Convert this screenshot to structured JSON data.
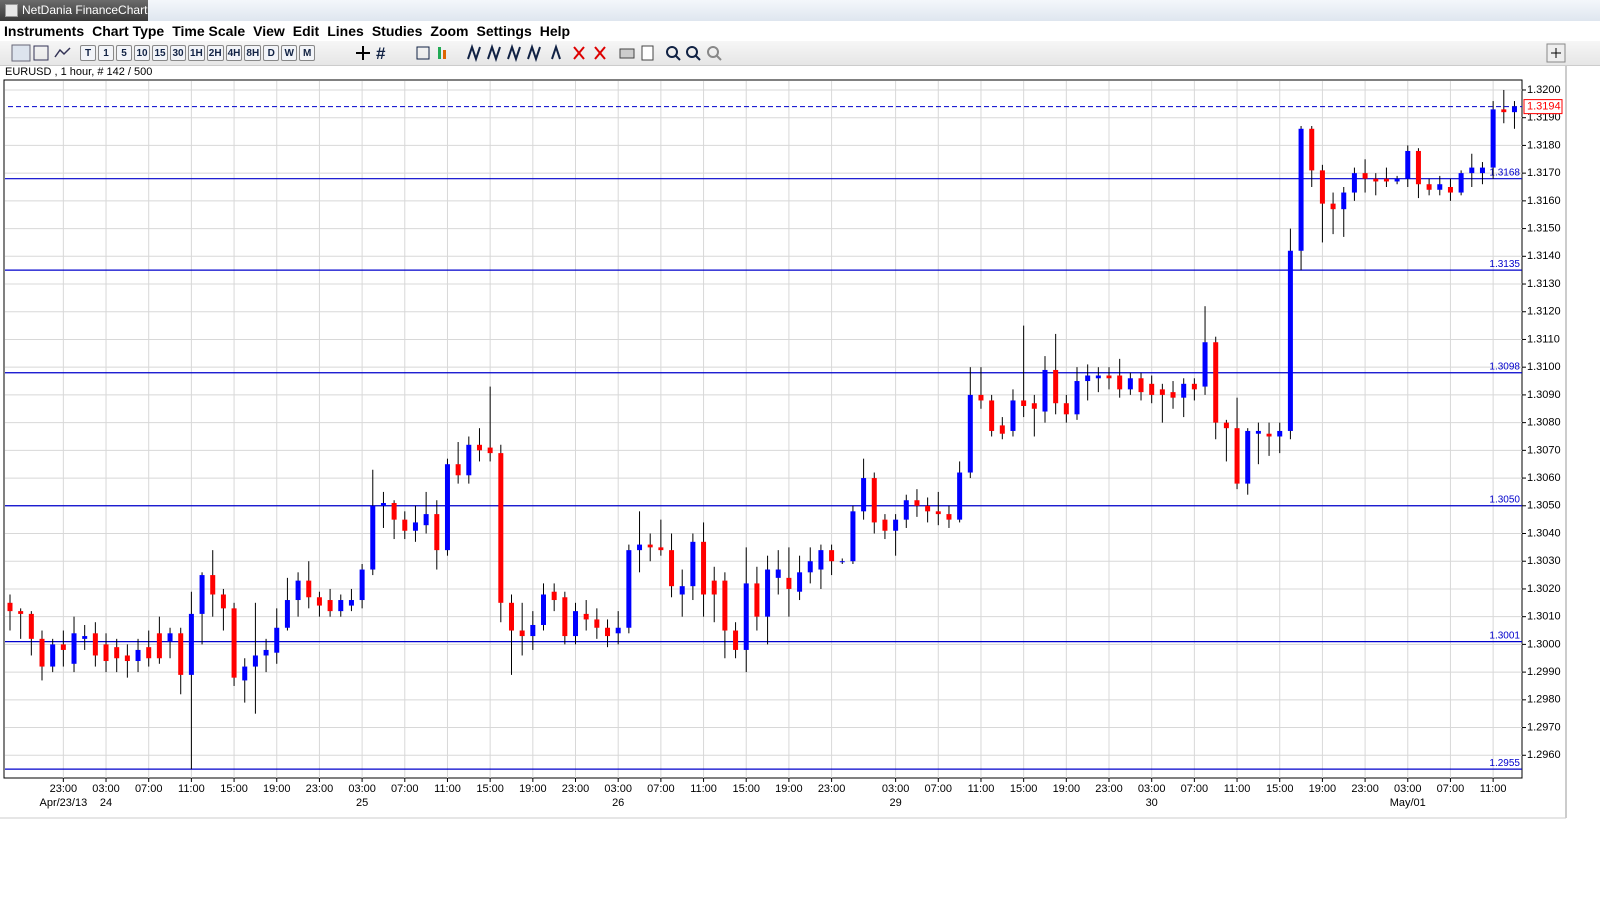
{
  "window": {
    "title": "NetDania FinanceChart",
    "menu": [
      "Instruments",
      "Chart Type",
      "Time Scale",
      "View",
      "Edit",
      "Lines",
      "Studies",
      "Zoom",
      "Settings",
      "Help"
    ],
    "toolbar": [
      "T",
      "1",
      "5",
      "10",
      "15",
      "30",
      "1H",
      "2H",
      "4H",
      "8H",
      "D",
      "W",
      "M"
    ],
    "info": "EURUSD , 1 hour, # 142 / 500"
  },
  "chart_data": {
    "type": "candlestick",
    "up_color": "#0000ff",
    "down_color": "#ff0000",
    "grid": true,
    "level_color": "#0000cc",
    "categories": [
      null,
      null,
      null,
      null,
      null,
      "23:00",
      null,
      null,
      null,
      "03:00",
      null,
      null,
      null,
      "07:00",
      null,
      null,
      null,
      "11:00",
      null,
      null,
      null,
      "15:00",
      null,
      null,
      null,
      "19:00",
      null,
      null,
      null,
      "23:00",
      null,
      null,
      null,
      "03:00",
      null,
      null,
      null,
      "07:00",
      null,
      null,
      null,
      "11:00",
      null,
      null,
      null,
      "15:00",
      null,
      null,
      null,
      "19:00",
      null,
      null,
      null,
      "23:00",
      null,
      null,
      null,
      "03:00",
      null,
      null,
      null,
      "07:00",
      null,
      null,
      null,
      "11:00",
      null,
      null,
      null,
      "15:00",
      null,
      null,
      null,
      "19:00",
      null,
      null,
      null,
      "23:00",
      null,
      null,
      null,
      null,
      null,
      "03:00",
      null,
      null,
      null,
      "07:00",
      null,
      null,
      null,
      "11:00",
      null,
      null,
      null,
      "15:00",
      null,
      null,
      null,
      "19:00",
      null,
      null,
      null,
      "23:00",
      null,
      null,
      null,
      "03:00",
      null,
      null,
      null,
      "07:00",
      null,
      null,
      null,
      "11:00",
      null,
      null,
      null,
      "15:00",
      null,
      null,
      null,
      "19:00",
      null,
      null,
      null,
      "23:00",
      null,
      null,
      null,
      "03:00",
      null,
      null,
      null,
      "07:00",
      null,
      null,
      null,
      "11:00",
      null,
      null
    ],
    "dates": [
      null,
      null,
      null,
      null,
      null,
      "Apr/23/13",
      null,
      null,
      null,
      "24",
      null,
      null,
      null,
      null,
      null,
      null,
      null,
      null,
      null,
      null,
      null,
      null,
      null,
      null,
      null,
      null,
      null,
      null,
      null,
      null,
      null,
      null,
      null,
      "25",
      null,
      null,
      null,
      null,
      null,
      null,
      null,
      null,
      null,
      null,
      null,
      null,
      null,
      null,
      null,
      null,
      null,
      null,
      null,
      null,
      null,
      null,
      null,
      "26",
      null,
      null,
      null,
      null,
      null,
      null,
      null,
      null,
      null,
      null,
      null,
      null,
      null,
      null,
      null,
      null,
      null,
      null,
      null,
      null,
      null,
      null,
      null,
      null,
      null,
      "29",
      null,
      null,
      null,
      null,
      null,
      null,
      null,
      null,
      null,
      null,
      null,
      null,
      null,
      null,
      null,
      null,
      null,
      null,
      null,
      null,
      null,
      null,
      null,
      "30",
      null,
      null,
      null,
      null,
      null,
      null,
      null,
      null,
      null,
      null,
      null,
      null,
      null,
      null,
      null,
      null,
      null,
      null,
      null,
      null,
      null,
      null,
      null,
      "May/01",
      null,
      null,
      null,
      null,
      null,
      null,
      null,
      null,
      null,
      null
    ],
    "open": [
      1.3015,
      1.3012,
      1.3011,
      1.3002,
      1.2992,
      1.3,
      1.2993,
      1.3002,
      1.3004,
      1.3,
      1.2999,
      1.2996,
      1.2994,
      1.2999,
      1.3004,
      1.3001,
      1.3004,
      1.2989,
      1.3011,
      1.3025,
      1.3018,
      1.3013,
      1.2987,
      1.2992,
      1.2996,
      1.2997,
      1.3006,
      1.3016,
      1.3023,
      1.3017,
      1.3016,
      1.3012,
      1.3014,
      1.3016,
      1.3027,
      1.305,
      1.3051,
      1.3045,
      1.3041,
      1.3043,
      1.3047,
      1.3034,
      1.3065,
      1.3061,
      1.3072,
      1.3071,
      1.3069,
      1.3015,
      1.3005,
      1.3003,
      1.3007,
      1.3019,
      1.3017,
      1.3003,
      1.3011,
      1.3009,
      1.3006,
      1.3004,
      1.3006,
      1.3034,
      1.3036,
      1.3035,
      1.3034,
      1.3018,
      1.3021,
      1.3037,
      1.3023,
      1.3023,
      1.3005,
      1.2998,
      1.3022,
      1.301,
      1.3024,
      1.3024,
      1.3019,
      1.3026,
      1.3027,
      1.3034,
      1.303,
      1.303,
      1.3048,
      1.306,
      1.3045,
      1.3041,
      1.3045,
      1.3052,
      1.305,
      1.3048,
      1.3047,
      1.3045,
      1.3062,
      1.309,
      1.3088,
      1.3079,
      1.3077,
      1.3088,
      1.3087,
      1.3084,
      1.3099,
      1.3087,
      1.3083,
      1.3095,
      1.3096,
      1.3097,
      1.3097,
      1.3092,
      1.3096,
      1.3094,
      1.3092,
      1.3091,
      1.3089,
      1.3094,
      1.3093,
      1.3109,
      1.308,
      1.3078,
      1.3058,
      1.3076,
      1.3076,
      1.3075,
      1.3077,
      1.3142,
      1.3186,
      1.3171,
      1.3159,
      1.3157,
      1.3163,
      1.317,
      1.3168,
      1.3168,
      1.3167,
      1.3168,
      1.3178,
      1.3166,
      1.3164,
      1.3165,
      1.3163,
      1.317,
      1.317,
      1.3172,
      1.3193,
      1.3192
    ],
    "high": [
      1.3018,
      1.3013,
      1.3012,
      1.3005,
      1.3002,
      1.3005,
      1.301,
      1.3007,
      1.3008,
      1.3004,
      1.3002,
      1.3,
      1.3002,
      1.3005,
      1.301,
      1.3006,
      1.3006,
      1.3019,
      1.3026,
      1.3034,
      1.302,
      1.3015,
      1.2995,
      1.3015,
      1.3002,
      1.3013,
      1.3024,
      1.3026,
      1.303,
      1.3019,
      1.302,
      1.3018,
      1.302,
      1.3029,
      1.3063,
      1.3055,
      1.3052,
      1.3048,
      1.305,
      1.3055,
      1.3052,
      1.3067,
      1.3073,
      1.3075,
      1.3078,
      1.3093,
      1.3072,
      1.3018,
      1.3015,
      1.3012,
      1.3022,
      1.3022,
      1.3019,
      1.3015,
      1.3016,
      1.3013,
      1.3009,
      1.3012,
      1.3036,
      1.3048,
      1.304,
      1.3045,
      1.304,
      1.3027,
      1.304,
      1.3044,
      1.3028,
      1.3026,
      1.3008,
      1.3035,
      1.3028,
      1.3032,
      1.3034,
      1.3035,
      1.3032,
      1.3035,
      1.3036,
      1.3036,
      1.3031,
      1.305,
      1.3067,
      1.3062,
      1.3047,
      1.3047,
      1.3054,
      1.3056,
      1.3053,
      1.3055,
      1.305,
      1.3066,
      1.31,
      1.31,
      1.309,
      1.3082,
      1.3092,
      1.3115,
      1.309,
      1.3104,
      1.3112,
      1.309,
      1.31,
      1.3101,
      1.31,
      1.31,
      1.3103,
      1.3098,
      1.3098,
      1.3097,
      1.3094,
      1.3095,
      1.3096,
      1.3096,
      1.3122,
      1.3111,
      1.3081,
      1.3089,
      1.3078,
      1.308,
      1.308,
      1.308,
      1.315,
      1.3187,
      1.3187,
      1.3173,
      1.3163,
      1.3165,
      1.3172,
      1.3175,
      1.317,
      1.3172,
      1.3169,
      1.318,
      1.3179,
      1.3168,
      1.3169,
      1.3168,
      1.3171,
      1.3177,
      1.3174,
      1.3196,
      1.32,
      1.3196
    ],
    "low": [
      1.3005,
      1.3002,
      1.2996,
      1.2987,
      1.299,
      1.2992,
      1.299,
      1.2998,
      1.2992,
      1.299,
      1.299,
      1.2988,
      1.299,
      1.2992,
      1.2993,
      1.2995,
      1.2982,
      1.2955,
      1.3,
      1.301,
      1.3005,
      1.2985,
      1.2979,
      1.2975,
      1.299,
      1.2993,
      1.3005,
      1.301,
      1.3013,
      1.301,
      1.301,
      1.301,
      1.3012,
      1.3013,
      1.3025,
      1.3042,
      1.3038,
      1.3038,
      1.3037,
      1.304,
      1.3027,
      1.3032,
      1.3058,
      1.3058,
      1.3066,
      1.3066,
      1.3008,
      1.2989,
      1.2996,
      1.2998,
      1.3005,
      1.3012,
      1.3,
      1.3,
      1.3005,
      1.3002,
      1.2999,
      1.3,
      1.3004,
      1.3026,
      1.303,
      1.3032,
      1.3017,
      1.301,
      1.3016,
      1.301,
      1.3008,
      1.2995,
      1.2995,
      1.299,
      1.3005,
      1.3,
      1.3018,
      1.301,
      1.3016,
      1.3022,
      1.302,
      1.3025,
      1.3029,
      1.3029,
      1.3045,
      1.304,
      1.3038,
      1.3032,
      1.3042,
      1.3046,
      1.3044,
      1.3043,
      1.3042,
      1.3044,
      1.306,
      1.3085,
      1.3075,
      1.3074,
      1.3075,
      1.3082,
      1.3075,
      1.308,
      1.3083,
      1.308,
      1.3081,
      1.3088,
      1.3091,
      1.3092,
      1.3089,
      1.309,
      1.3088,
      1.3087,
      1.308,
      1.3085,
      1.3082,
      1.3088,
      1.309,
      1.3074,
      1.3066,
      1.3056,
      1.3054,
      1.3065,
      1.3068,
      1.3069,
      1.3074,
      1.3135,
      1.3165,
      1.3145,
      1.3148,
      1.3147,
      1.316,
      1.3163,
      1.3162,
      1.3165,
      1.3166,
      1.3165,
      1.3161,
      1.3162,
      1.3162,
      1.316,
      1.3162,
      1.3165,
      1.3166,
      1.3168,
      1.3188,
      1.3186
    ],
    "close": [
      1.3012,
      1.3011,
      1.3002,
      1.2992,
      1.3,
      1.2998,
      1.3004,
      1.3003,
      1.2996,
      1.2994,
      1.2995,
      1.2994,
      1.2998,
      1.2995,
      1.2995,
      1.3004,
      1.2989,
      1.3011,
      1.3025,
      1.3018,
      1.3013,
      1.2988,
      1.2992,
      1.2996,
      1.2998,
      1.3006,
      1.3016,
      1.3023,
      1.3017,
      1.3014,
      1.3012,
      1.3016,
      1.3016,
      1.3027,
      1.305,
      1.3051,
      1.3045,
      1.3041,
      1.3044,
      1.3047,
      1.3034,
      1.3065,
      1.3061,
      1.3072,
      1.307,
      1.3069,
      1.3015,
      1.3005,
      1.3003,
      1.3007,
      1.3018,
      1.3016,
      1.3003,
      1.3012,
      1.3009,
      1.3006,
      1.3003,
      1.3006,
      1.3034,
      1.3036,
      1.3035,
      1.3034,
      1.3021,
      1.3021,
      1.3037,
      1.3018,
      1.3018,
      1.3005,
      1.2998,
      1.3022,
      1.301,
      1.3027,
      1.3027,
      1.302,
      1.3026,
      1.303,
      1.3034,
      1.303,
      1.303,
      1.3048,
      1.306,
      1.3044,
      1.3041,
      1.3045,
      1.3052,
      1.305,
      1.3048,
      1.3047,
      1.3045,
      1.3062,
      1.309,
      1.3088,
      1.3077,
      1.3076,
      1.3088,
      1.3086,
      1.3085,
      1.3099,
      1.3087,
      1.3083,
      1.3095,
      1.3097,
      1.3097,
      1.3096,
      1.3092,
      1.3096,
      1.3091,
      1.309,
      1.309,
      1.3089,
      1.3094,
      1.3092,
      1.3109,
      1.308,
      1.3078,
      1.3058,
      1.3077,
      1.3077,
      1.3075,
      1.3077,
      1.3142,
      1.3186,
      1.3171,
      1.3159,
      1.3157,
      1.3163,
      1.317,
      1.3168,
      1.3167,
      1.3167,
      1.3168,
      1.3178,
      1.3166,
      1.3164,
      1.3166,
      1.3163,
      1.317,
      1.3172,
      1.3172,
      1.3193,
      1.3192,
      1.3194
    ],
    "levels": [
      1.3168,
      1.3135,
      1.3098,
      {
        "value": 1.305,
        "label": "1.3050"
      },
      1.3001,
      1.2955
    ],
    "last_price": 1.3194,
    "ylim": [
      1.29518,
      1.32036
    ],
    "yticks": [
      {
        "value": 1.296,
        "label": "1.2960"
      },
      {
        "value": 1.297,
        "label": "1.2970"
      },
      {
        "value": 1.298,
        "label": "1.2980"
      },
      {
        "value": 1.299,
        "label": "1.2990"
      },
      {
        "value": 1.3,
        "label": "1.3000"
      },
      {
        "value": 1.301,
        "label": "1.3010"
      },
      {
        "value": 1.302,
        "label": "1.3020"
      },
      {
        "value": 1.303,
        "label": "1.3030"
      },
      {
        "value": 1.304,
        "label": "1.3040"
      },
      {
        "value": 1.305,
        "label": "1.3050"
      },
      {
        "value": 1.306,
        "label": "1.3060"
      },
      {
        "value": 1.307,
        "label": "1.3070"
      },
      {
        "value": 1.308,
        "label": "1.3080"
      },
      {
        "value": 1.309,
        "label": "1.3090"
      },
      {
        "value": 1.31,
        "label": "1.3100"
      },
      {
        "value": 1.311,
        "label": "1.3110"
      },
      {
        "value": 1.312,
        "label": "1.3120"
      },
      {
        "value": 1.313,
        "label": "1.3130"
      },
      {
        "value": 1.314,
        "label": "1.3140"
      },
      {
        "value": 1.315,
        "label": "1.3150"
      },
      {
        "value": 1.316,
        "label": "1.3160"
      },
      {
        "value": 1.317,
        "label": "1.3170"
      },
      {
        "value": 1.318,
        "label": "1.3180"
      },
      {
        "value": 1.319,
        "label": "1.3190"
      },
      {
        "value": 1.32,
        "label": "1.3200"
      }
    ]
  }
}
